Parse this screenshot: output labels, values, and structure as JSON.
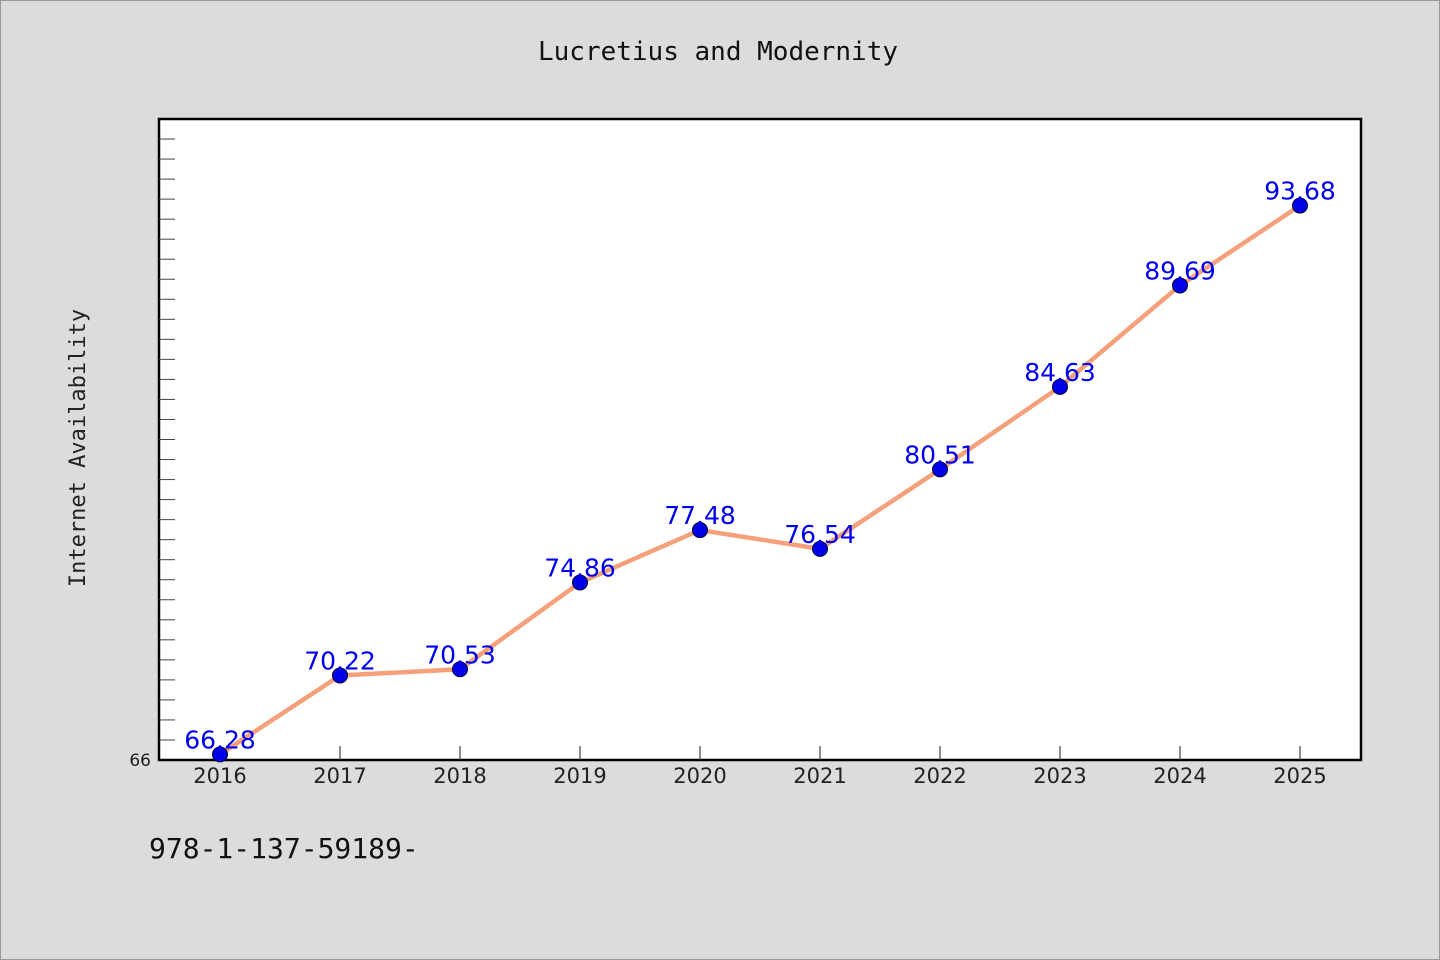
{
  "chart_data": {
    "type": "line",
    "title": "Lucretius and Modernity",
    "xlabel": "",
    "ylabel": "Internet Availability",
    "categories": [
      "2016",
      "2017",
      "2018",
      "2019",
      "2020",
      "2021",
      "2022",
      "2023",
      "2024",
      "2025"
    ],
    "series": [
      {
        "values": [
          66.28,
          70.22,
          70.53,
          74.86,
          77.48,
          76.54,
          80.51,
          84.63,
          89.69,
          93.68
        ],
        "labels": [
          "66.28",
          "70.22",
          "70.53",
          "74.86",
          "77.48",
          "76.54",
          "80.51",
          "84.63",
          "89.69",
          "93.68"
        ],
        "line_color": "#f4a07a",
        "marker_color": "#0000e6",
        "label_color": "#0000ee"
      }
    ],
    "ylim": [
      66,
      98
    ],
    "y_tick_labels": [
      {
        "value": 66,
        "label": "66"
      }
    ],
    "grid": false,
    "legend": "none"
  },
  "footnote": "978-1-137-59189-"
}
